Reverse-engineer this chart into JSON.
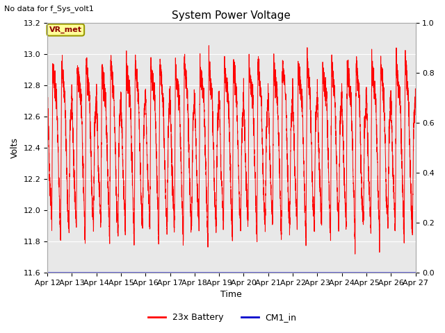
{
  "title": "System Power Voltage",
  "no_data_text": "No data for f_Sys_volt1",
  "xlabel": "Time",
  "ylabel": "Volts",
  "ylim_left": [
    11.6,
    13.2
  ],
  "ylim_right": [
    0.0,
    1.0
  ],
  "yticks_left": [
    11.6,
    11.8,
    12.0,
    12.2,
    12.4,
    12.6,
    12.8,
    13.0,
    13.2
  ],
  "yticks_right": [
    0.0,
    0.2,
    0.4,
    0.6,
    0.8,
    1.0
  ],
  "xtick_labels": [
    "Apr 12",
    "Apr 13",
    "Apr 14",
    "Apr 15",
    "Apr 16",
    "Apr 17",
    "Apr 18",
    "Apr 19",
    "Apr 20",
    "Apr 21",
    "Apr 22",
    "Apr 23",
    "Apr 24",
    "Apr 25",
    "Apr 26",
    "Apr 27"
  ],
  "vr_met_label": "VR_met",
  "legend_labels": [
    "23x Battery",
    "CM1_in"
  ],
  "battery_color": "#ff0000",
  "cm1_color": "#0000cc",
  "plot_bg_color": "#e8e8e8",
  "grid_color": "#ffffff",
  "title_fontsize": 11,
  "axis_fontsize": 9,
  "tick_fontsize": 8
}
